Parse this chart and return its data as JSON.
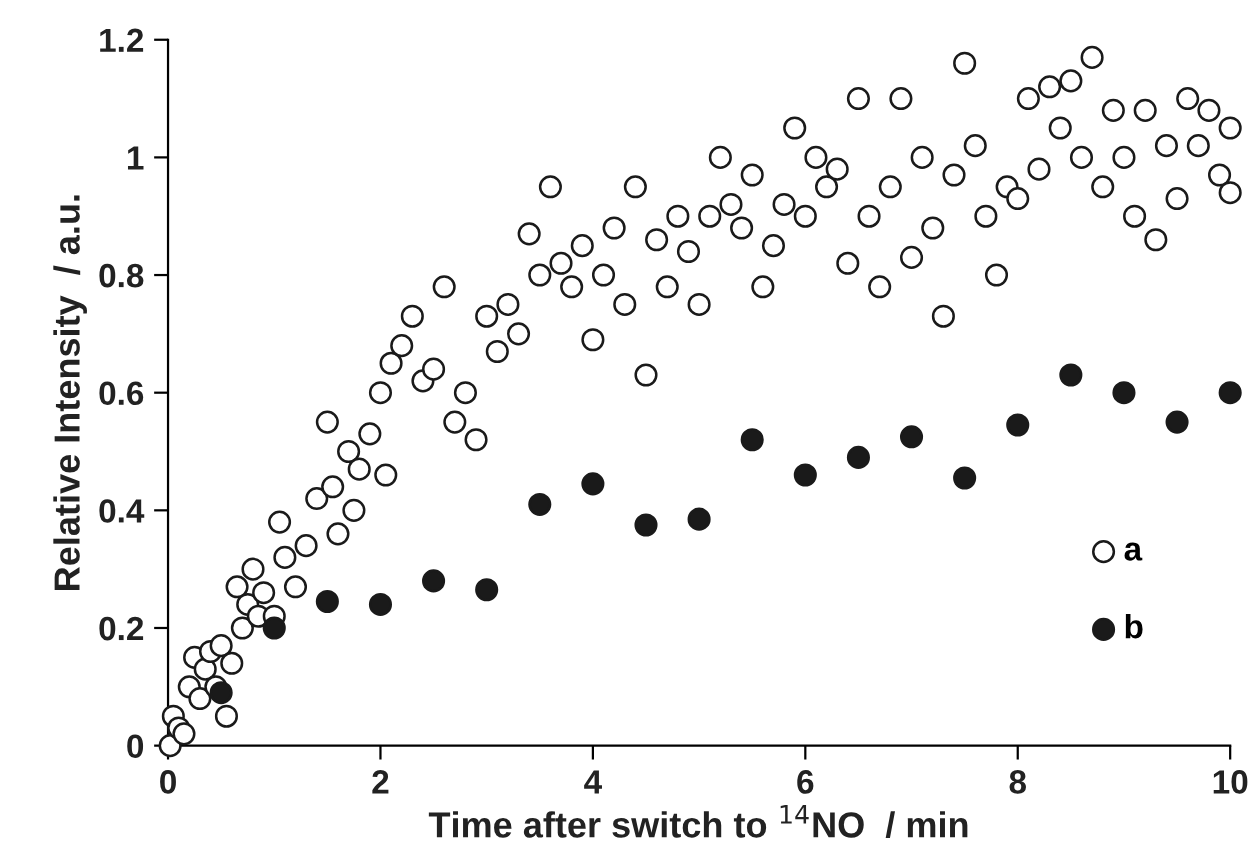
{
  "chart_data": {
    "type": "scatter",
    "xlabel": "Time after switch to $^{14}$NO  / min",
    "ylabel": "Relative Intensity  / a.u.",
    "xlim": [
      0,
      10
    ],
    "xticks": [
      0,
      2,
      4,
      6,
      8,
      10
    ],
    "ylim": [
      0,
      1.2
    ],
    "yticks": [
      0,
      0.2,
      0.4,
      0.6,
      0.8,
      1,
      1.2
    ],
    "grid": false,
    "legend": "bottom right",
    "marker": "circle",
    "series": [
      {
        "name": "a",
        "color": "#ffffff",
        "x": [
          0.02,
          0.05,
          0.1,
          0.15,
          0.2,
          0.25,
          0.3,
          0.35,
          0.4,
          0.45,
          0.5,
          0.55,
          0.6,
          0.65,
          0.7,
          0.75,
          0.8,
          0.85,
          0.9,
          1.0,
          1.05,
          1.1,
          1.2,
          1.3,
          1.4,
          1.5,
          1.55,
          1.6,
          1.7,
          1.75,
          1.8,
          1.9,
          2.0,
          2.05,
          2.1,
          2.2,
          2.3,
          2.4,
          2.5,
          2.6,
          2.7,
          2.8,
          2.9,
          3.0,
          3.1,
          3.2,
          3.3,
          3.4,
          3.5,
          3.6,
          3.7,
          3.8,
          3.9,
          4.0,
          4.1,
          4.2,
          4.3,
          4.4,
          4.5,
          4.6,
          4.7,
          4.8,
          4.9,
          5.0,
          5.1,
          5.2,
          5.3,
          5.4,
          5.5,
          5.6,
          5.7,
          5.8,
          5.9,
          6.0,
          6.1,
          6.2,
          6.3,
          6.4,
          6.5,
          6.6,
          6.7,
          6.8,
          6.9,
          7.0,
          7.1,
          7.2,
          7.3,
          7.4,
          7.5,
          7.6,
          7.7,
          7.8,
          7.9,
          8.0,
          8.1,
          8.2,
          8.3,
          8.4,
          8.5,
          8.6,
          8.7,
          8.8,
          8.9,
          9.0,
          9.1,
          9.2,
          9.3,
          9.4,
          9.5,
          9.6,
          9.7,
          9.8,
          9.9,
          10.0,
          10.0
        ],
        "values": [
          0.0,
          0.05,
          0.03,
          0.02,
          0.1,
          0.15,
          0.08,
          0.13,
          0.16,
          0.1,
          0.17,
          0.05,
          0.14,
          0.27,
          0.2,
          0.24,
          0.3,
          0.22,
          0.26,
          0.22,
          0.38,
          0.32,
          0.27,
          0.34,
          0.42,
          0.55,
          0.44,
          0.36,
          0.5,
          0.4,
          0.47,
          0.53,
          0.6,
          0.46,
          0.65,
          0.68,
          0.73,
          0.62,
          0.64,
          0.78,
          0.55,
          0.6,
          0.52,
          0.73,
          0.67,
          0.75,
          0.7,
          0.87,
          0.8,
          0.95,
          0.82,
          0.78,
          0.85,
          0.69,
          0.8,
          0.88,
          0.75,
          0.95,
          0.63,
          0.86,
          0.78,
          0.9,
          0.84,
          0.75,
          0.9,
          1.0,
          0.92,
          0.88,
          0.97,
          0.78,
          0.85,
          0.92,
          1.05,
          0.9,
          1.0,
          0.95,
          0.98,
          0.82,
          1.1,
          0.9,
          0.78,
          0.95,
          1.1,
          0.83,
          1.0,
          0.88,
          0.73,
          0.97,
          1.16,
          1.02,
          0.9,
          0.8,
          0.95,
          0.93,
          1.1,
          0.98,
          1.12,
          1.05,
          1.13,
          1.0,
          1.17,
          0.95,
          1.08,
          1.0,
          0.9,
          1.08,
          0.86,
          1.02,
          0.93,
          1.1,
          1.02,
          1.08,
          0.97,
          1.05,
          0.94
        ]
      },
      {
        "name": "b",
        "color": "#1a1a1a",
        "x": [
          0.5,
          1,
          1.5,
          2,
          2.5,
          3,
          3.5,
          4,
          4.5,
          5,
          5.5,
          6,
          6.5,
          7,
          7.5,
          8,
          8.5,
          9,
          9.5,
          10
        ],
        "values": [
          0.09,
          0.2,
          0.245,
          0.24,
          0.28,
          0.265,
          0.41,
          0.445,
          0.375,
          0.385,
          0.52,
          0.46,
          0.49,
          0.525,
          0.455,
          0.545,
          0.63,
          0.6,
          0.55,
          0.6
        ]
      }
    ]
  }
}
